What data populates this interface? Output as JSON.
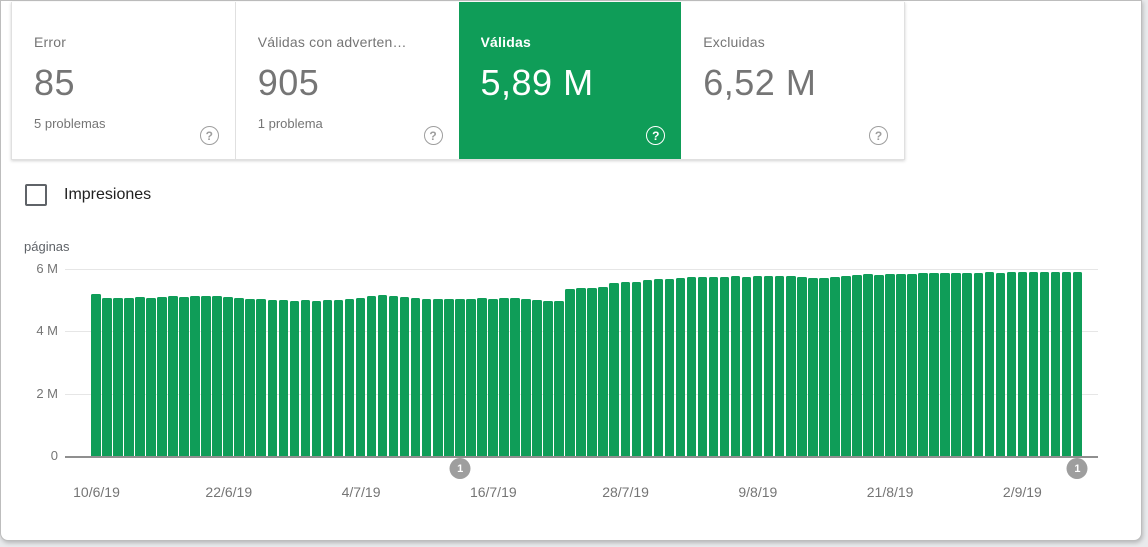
{
  "colors": {
    "accent_green": "#0f9d58",
    "axis_text": "#757575",
    "gridline": "#e6e6e6",
    "marker_gray": "#9e9e9e"
  },
  "icons": {
    "help_glyph": "?"
  },
  "cards": [
    {
      "title": "Error",
      "value": "85",
      "subtext": "5 problemas",
      "selected": false
    },
    {
      "title": "Válidas con adverten…",
      "value": "905",
      "subtext": "1 problema",
      "selected": false
    },
    {
      "title": "Válidas",
      "value": "5,89 M",
      "subtext": "",
      "selected": true
    },
    {
      "title": "Excluidas",
      "value": "6,52 M",
      "subtext": "",
      "selected": false
    }
  ],
  "controls": {
    "impressions_label": "Impresiones",
    "impressions_checked": false
  },
  "chart_data": {
    "type": "bar",
    "title": "",
    "xlabel": "",
    "ylabel": "páginas",
    "unit": "millones de páginas",
    "ylim": [
      0,
      6
    ],
    "grid": true,
    "y_ticks": [
      {
        "value": 6,
        "label": "6 M"
      },
      {
        "value": 4,
        "label": "4 M"
      },
      {
        "value": 2,
        "label": "2 M"
      },
      {
        "value": 0,
        "label": "0"
      }
    ],
    "x_tick_labels": [
      "10/6/19",
      "22/6/19",
      "4/7/19",
      "16/7/19",
      "28/7/19",
      "9/8/19",
      "21/8/19",
      "2/9/19"
    ],
    "x_tick_indices": [
      0,
      12,
      24,
      36,
      48,
      60,
      72,
      84
    ],
    "series_name": "Válidas",
    "values_millions": [
      5.19,
      5.07,
      5.08,
      5.06,
      5.09,
      5.08,
      5.11,
      5.12,
      5.1,
      5.14,
      5.15,
      5.13,
      5.11,
      5.06,
      5.04,
      5.03,
      5.01,
      4.99,
      4.98,
      4.99,
      4.97,
      4.99,
      5.01,
      5.04,
      5.08,
      5.12,
      5.16,
      5.14,
      5.1,
      5.07,
      5.05,
      5.04,
      5.03,
      5.04,
      5.05,
      5.06,
      5.05,
      5.06,
      5.07,
      5.05,
      4.99,
      4.97,
      4.96,
      5.37,
      5.39,
      5.4,
      5.42,
      5.56,
      5.58,
      5.57,
      5.65,
      5.67,
      5.69,
      5.72,
      5.74,
      5.73,
      5.75,
      5.74,
      5.76,
      5.75,
      5.77,
      5.76,
      5.77,
      5.78,
      5.73,
      5.71,
      5.72,
      5.74,
      5.79,
      5.81,
      5.83,
      5.82,
      5.84,
      5.85,
      5.84,
      5.86,
      5.87,
      5.86,
      5.88,
      5.87,
      5.88,
      5.89,
      5.88,
      5.89,
      5.9,
      5.89,
      5.9,
      5.89,
      5.9,
      5.89
    ],
    "annotations": [
      {
        "label": "1",
        "bar_index": 33
      },
      {
        "label": "1",
        "bar_index": 89
      }
    ]
  }
}
